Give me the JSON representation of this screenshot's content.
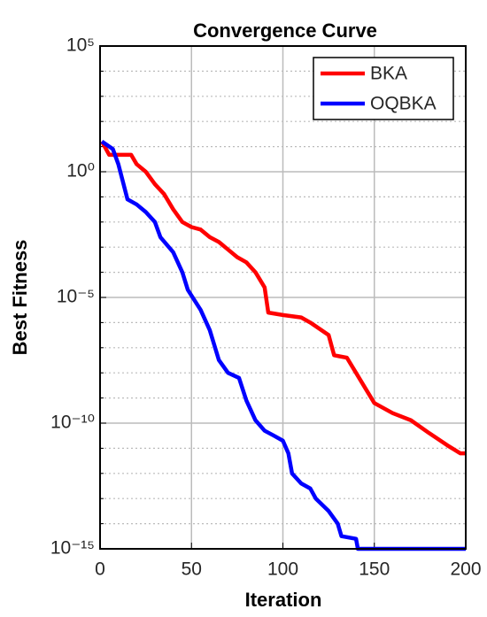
{
  "chart_data": {
    "type": "line",
    "title": "Convergence Curve",
    "xlabel": "Iteration",
    "ylabel": "Best Fitness",
    "xlim": [
      0,
      200
    ],
    "xticks": [
      0,
      50,
      100,
      150,
      200
    ],
    "ylim": [
      1e-15,
      100000
    ],
    "yscale": "log",
    "yticks": [
      {
        "value": 1e-15,
        "label": "10⁻¹⁵"
      },
      {
        "value": 1e-10,
        "label": "10⁻¹⁰"
      },
      {
        "value": 1e-05,
        "label": "10⁻⁵"
      },
      {
        "value": 1,
        "label": "10⁰"
      },
      {
        "value": 100000,
        "label": "10⁵"
      }
    ],
    "yminorticks": [
      1e-14,
      1e-13,
      1e-12,
      1e-11,
      1e-09,
      1e-08,
      1e-07,
      1e-06,
      0.0001,
      0.001,
      0.01,
      0.1,
      10,
      100,
      1000,
      10000
    ],
    "grid": true,
    "legend": "upper right",
    "series": [
      {
        "name": "BKA",
        "color": "#ff0000",
        "x": [
          1,
          5,
          17,
          20,
          25,
          30,
          35,
          40,
          45,
          50,
          55,
          60,
          65,
          70,
          75,
          80,
          85,
          90,
          92,
          100,
          110,
          115,
          125,
          128,
          135,
          140,
          145,
          150,
          160,
          170,
          180,
          190,
          197,
          200
        ],
        "values": [
          16,
          4.7,
          4.7,
          2,
          1,
          0.32,
          0.13,
          0.032,
          0.01,
          0.0063,
          0.005,
          0.0025,
          0.0016,
          0.0008,
          0.0004,
          0.00025,
          0.0001,
          2.5e-05,
          2.5e-06,
          2e-06,
          1.6e-06,
          1e-06,
          3.2e-07,
          5e-08,
          4e-08,
          1e-08,
          2.5e-09,
          6.3e-10,
          2.5e-10,
          1.3e-10,
          4e-11,
          1.3e-11,
          6.3e-12,
          6.3e-12
        ]
      },
      {
        "name": "OQBKA",
        "color": "#0000ff",
        "x": [
          1,
          7,
          10,
          15,
          20,
          25,
          30,
          33,
          40,
          45,
          48,
          55,
          60,
          65,
          70,
          76,
          80,
          85,
          90,
          95,
          100,
          103,
          105,
          110,
          115,
          118,
          125,
          130,
          132,
          140,
          141,
          200
        ],
        "values": [
          16,
          8,
          2,
          0.08,
          0.05,
          0.025,
          0.01,
          0.0025,
          0.00063,
          0.0001,
          2e-05,
          3.2e-06,
          5e-07,
          3.2e-08,
          1e-08,
          6.3e-09,
          8e-10,
          1.3e-10,
          5e-11,
          3.2e-11,
          2e-11,
          6.3e-12,
          1e-12,
          4e-13,
          2.5e-13,
          1e-13,
          3.2e-14,
          1e-14,
          3.2e-15,
          2.5e-15,
          1e-15,
          1e-15
        ]
      }
    ]
  }
}
